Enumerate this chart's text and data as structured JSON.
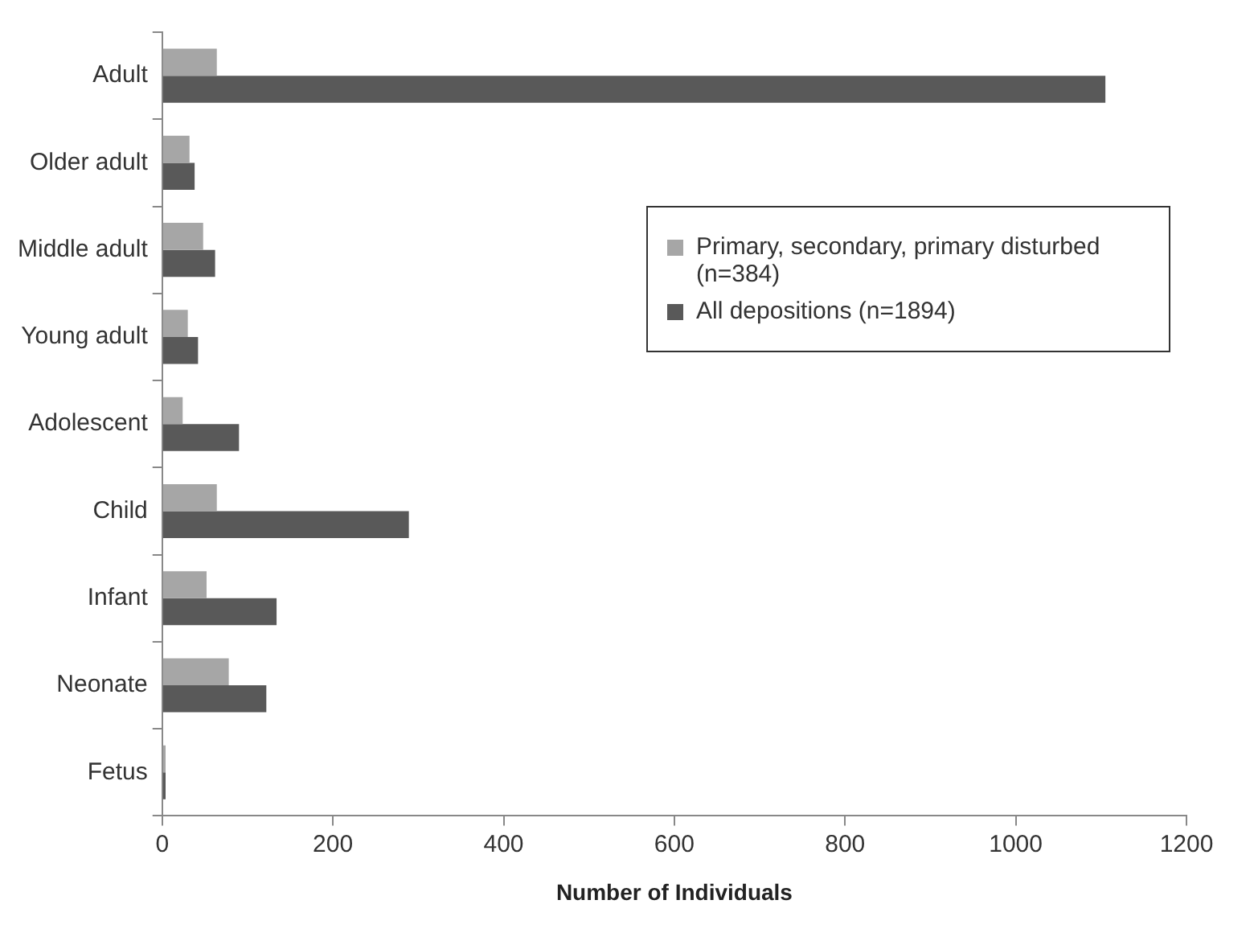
{
  "chart_data": {
    "type": "bar",
    "orientation": "horizontal",
    "xlabel": "Number of Individuals",
    "categories": [
      "Adult",
      "Older adult",
      "Middle adult",
      "Young adult",
      "Adolescent",
      "Child",
      "Infant",
      "Neonate",
      "Fetus"
    ],
    "series": [
      {
        "name": "Primary, secondary, primary disturbed (n=384)",
        "color": "#a6a6a6",
        "values": [
          64,
          32,
          48,
          30,
          24,
          64,
          52,
          78,
          4
        ]
      },
      {
        "name": "All depositions (n=1894)",
        "color": "#595959",
        "values": [
          1105,
          38,
          62,
          42,
          90,
          289,
          134,
          122,
          4
        ]
      }
    ],
    "xlim": [
      0,
      1200
    ],
    "xticks": [
      0,
      200,
      400,
      600,
      800,
      1000,
      1200
    ],
    "grid": false,
    "legend": "right"
  }
}
